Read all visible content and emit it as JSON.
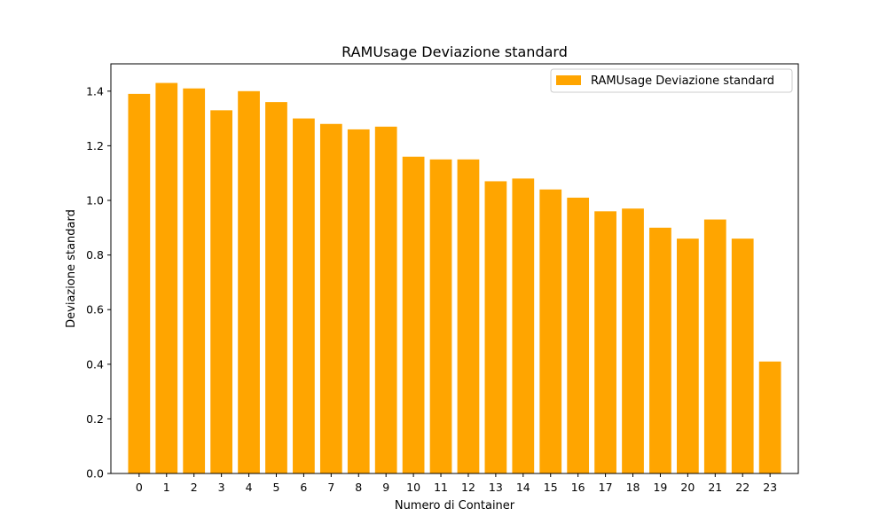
{
  "chart_data": {
    "type": "bar",
    "title": "RAMUsage Deviazione standard",
    "xlabel": "Numero di Container",
    "ylabel": "Deviazione standard",
    "categories": [
      "0",
      "1",
      "2",
      "3",
      "4",
      "5",
      "6",
      "7",
      "8",
      "9",
      "10",
      "11",
      "12",
      "13",
      "14",
      "15",
      "16",
      "17",
      "18",
      "19",
      "20",
      "21",
      "22",
      "23"
    ],
    "series": [
      {
        "name": "RAMUsage Deviazione standard",
        "color": "#ffa500",
        "values": [
          1.39,
          1.43,
          1.41,
          1.33,
          1.4,
          1.36,
          1.3,
          1.28,
          1.26,
          1.27,
          1.16,
          1.15,
          1.15,
          1.07,
          1.08,
          1.04,
          1.01,
          0.96,
          0.97,
          0.9,
          0.86,
          0.93,
          0.86,
          0.41
        ]
      }
    ],
    "ylim": [
      0,
      1.5
    ],
    "yticks": [
      "0.0",
      "0.2",
      "0.4",
      "0.6",
      "0.8",
      "1.0",
      "1.2",
      "1.4"
    ],
    "grid": false,
    "legend_position": "top-right"
  }
}
